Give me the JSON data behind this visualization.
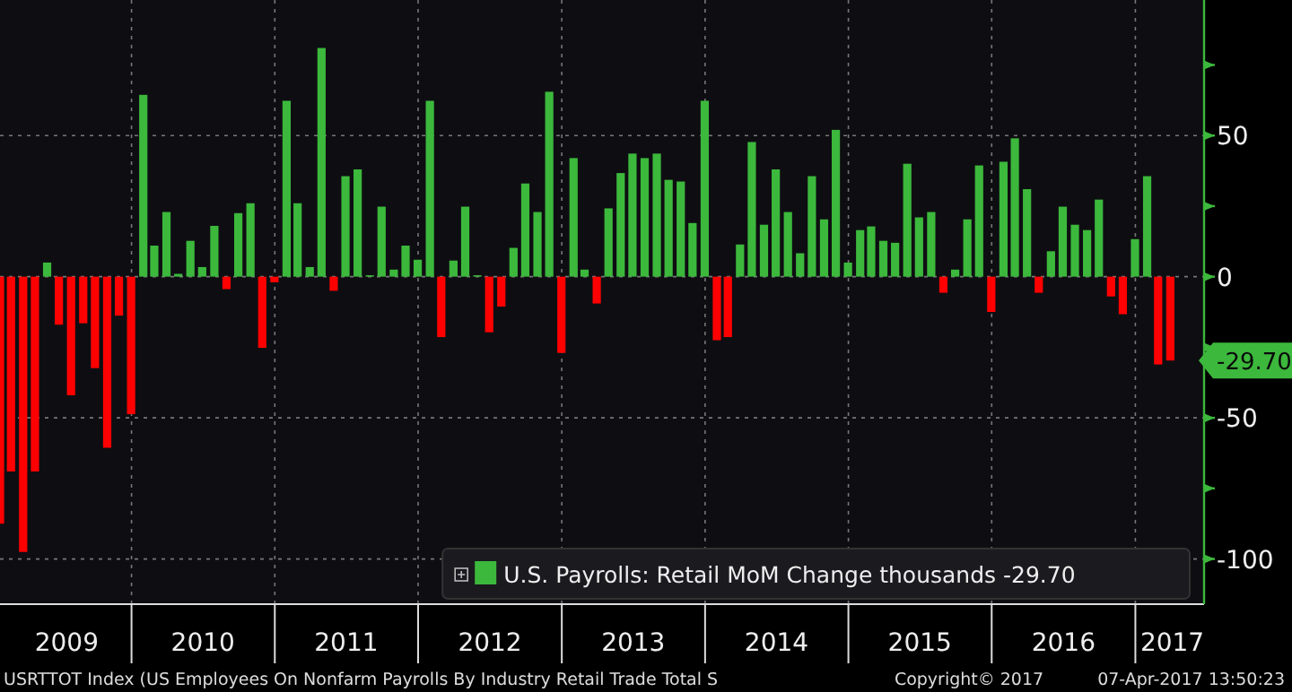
{
  "chart_data": {
    "type": "bar",
    "legend": "bottom right",
    "grid": true,
    "series": [
      {
        "name": "U.S. Payrolls: Retail MoM Change thousands -29.70",
        "color": "#3cb83c",
        "x": [
          "2009-01-31",
          "2009-02-28",
          "2009-03-31",
          "2009-04-30",
          "2009-05-31",
          "2009-06-30",
          "2009-07-31",
          "2009-08-31",
          "2009-09-30",
          "2009-10-31",
          "2009-11-30",
          "2009-12-31",
          "2010-01-31",
          "2010-02-28",
          "2010-03-31",
          "2010-04-30",
          "2010-05-31",
          "2010-06-30",
          "2010-07-31",
          "2010-08-31",
          "2010-09-30",
          "2010-10-31",
          "2010-11-30",
          "2010-12-31",
          "2011-01-31",
          "2011-02-28",
          "2011-03-31",
          "2011-04-30",
          "2011-05-31",
          "2011-06-30",
          "2011-07-31",
          "2011-08-31",
          "2011-09-30",
          "2011-10-31",
          "2011-11-30",
          "2011-12-31",
          "2012-01-31",
          "2012-02-29",
          "2012-03-31",
          "2012-04-30",
          "2012-05-31",
          "2012-06-30",
          "2012-07-31",
          "2012-08-31",
          "2012-09-30",
          "2012-10-31",
          "2012-11-30",
          "2012-12-31",
          "2013-01-31",
          "2013-02-28",
          "2013-03-31",
          "2013-04-30",
          "2013-05-31",
          "2013-06-30",
          "2013-07-31",
          "2013-08-31",
          "2013-09-30",
          "2013-10-31",
          "2013-11-30",
          "2013-12-31",
          "2014-01-31",
          "2014-02-28",
          "2014-03-31",
          "2014-04-30",
          "2014-05-31",
          "2014-06-30",
          "2014-07-31",
          "2014-08-31",
          "2014-09-30",
          "2014-10-31",
          "2014-11-30",
          "2014-12-31",
          "2015-01-31",
          "2015-02-28",
          "2015-03-31",
          "2015-04-30",
          "2015-05-31",
          "2015-06-30",
          "2015-07-31",
          "2015-08-31",
          "2015-09-30",
          "2015-10-31",
          "2015-11-30",
          "2015-12-31",
          "2016-01-31",
          "2016-02-29",
          "2016-03-31",
          "2016-04-30",
          "2016-05-31",
          "2016-06-30",
          "2016-07-31",
          "2016-08-31",
          "2016-09-30",
          "2016-10-31",
          "2016-11-30",
          "2016-12-31",
          "2017-01-31",
          "2017-02-28",
          "2017-03-31"
        ],
        "values": [
          -87.5,
          -69,
          -97.5,
          -69,
          5,
          -17,
          -42,
          -16.5,
          -32.4,
          -60.6,
          -13.8,
          -48.7,
          64.4,
          11,
          22.9,
          1,
          12.7,
          3.4,
          18,
          -4.4,
          22.5,
          26,
          -25.2,
          -2,
          62.3,
          26,
          3.4,
          81,
          -5,
          35.6,
          38,
          0.5,
          24.8,
          2.5,
          11,
          6,
          62.3,
          -21.4,
          5.7,
          24.8,
          0.5,
          -19.7,
          -10.6,
          10.2,
          33,
          22.9,
          65.5,
          -27,
          42,
          2.5,
          -9.5,
          24.2,
          36.7,
          43.6,
          42,
          43.6,
          34.3,
          33.7,
          19,
          62.3,
          -22.5,
          -21.4,
          11.4,
          47.7,
          18.4,
          38,
          22.9,
          8.3,
          35.6,
          20.3,
          52,
          5,
          16.5,
          17.8,
          12.7,
          12,
          40,
          21,
          22.9,
          -5.7,
          2.5,
          20.3,
          39.4,
          -12.5,
          40.7,
          49,
          31,
          -5.7,
          9,
          24.8,
          18.4,
          16.5,
          27.3,
          -7,
          -13.3,
          13.3,
          35.6,
          -31.1,
          -29.7
        ],
        "colors": [
          "#ff0000",
          "#ff0000",
          "#ff0000",
          "#ff0000",
          "#3cb83c",
          "#ff0000",
          "#ff0000",
          "#ff0000",
          "#ff0000",
          "#ff0000",
          "#ff0000",
          "#ff0000",
          "#3cb83c",
          "#3cb83c",
          "#3cb83c",
          "#3cb83c",
          "#3cb83c",
          "#3cb83c",
          "#3cb83c",
          "#ff0000",
          "#3cb83c",
          "#3cb83c",
          "#ff0000",
          "#ff0000",
          "#3cb83c",
          "#3cb83c",
          "#3cb83c",
          "#3cb83c",
          "#ff0000",
          "#3cb83c",
          "#3cb83c",
          "#3cb83c",
          "#3cb83c",
          "#3cb83c",
          "#3cb83c",
          "#3cb83c",
          "#3cb83c",
          "#ff0000",
          "#3cb83c",
          "#3cb83c",
          "#3cb83c",
          "#ff0000",
          "#ff0000",
          "#3cb83c",
          "#3cb83c",
          "#3cb83c",
          "#3cb83c",
          "#ff0000",
          "#3cb83c",
          "#3cb83c",
          "#ff0000",
          "#3cb83c",
          "#3cb83c",
          "#3cb83c",
          "#3cb83c",
          "#3cb83c",
          "#3cb83c",
          "#3cb83c",
          "#3cb83c",
          "#3cb83c",
          "#ff0000",
          "#ff0000",
          "#3cb83c",
          "#3cb83c",
          "#3cb83c",
          "#3cb83c",
          "#3cb83c",
          "#3cb83c",
          "#3cb83c",
          "#3cb83c",
          "#3cb83c",
          "#3cb83c",
          "#3cb83c",
          "#3cb83c",
          "#3cb83c",
          "#3cb83c",
          "#3cb83c",
          "#3cb83c",
          "#3cb83c",
          "#ff0000",
          "#3cb83c",
          "#3cb83c",
          "#3cb83c",
          "#ff0000",
          "#3cb83c",
          "#3cb83c",
          "#3cb83c",
          "#ff0000",
          "#3cb83c",
          "#3cb83c",
          "#3cb83c",
          "#3cb83c",
          "#3cb83c",
          "#ff0000",
          "#ff0000",
          "#3cb83c",
          "#3cb83c",
          "#ff0000",
          "#ff0000"
        ]
      }
    ],
    "xlim": [
      "2009-01-31",
      "2017-06-25"
    ],
    "xticks": [
      {
        "value": "2010-01-01",
        "label": null
      },
      {
        "value": "2011-01-01",
        "label": null
      },
      {
        "value": "2012-01-01",
        "label": null
      },
      {
        "value": "2013-01-01",
        "label": null
      },
      {
        "value": "2014-01-01",
        "label": null
      },
      {
        "value": "2015-01-01",
        "label": null
      },
      {
        "value": "2016-01-01",
        "label": null
      },
      {
        "value": "2017-01-01",
        "label": null
      },
      {
        "value": "2009-07-20",
        "label": "2009"
      },
      {
        "value": "2010-07-02",
        "label": "2010"
      },
      {
        "value": "2011-07-02",
        "label": "2011"
      },
      {
        "value": "2012-07-02",
        "label": "2012"
      },
      {
        "value": "2013-07-02",
        "label": "2013"
      },
      {
        "value": "2014-07-02",
        "label": "2014"
      },
      {
        "value": "2015-07-02",
        "label": "2015"
      },
      {
        "value": "2016-07-02",
        "label": "2016"
      },
      {
        "value": "2017-04-05",
        "label": "2017"
      }
    ],
    "ylim": [
      -116,
      98
    ],
    "yticks": [
      {
        "value": 75,
        "label": null
      },
      50,
      {
        "value": 25,
        "label": null
      },
      0,
      {
        "value": -25,
        "label": null
      },
      -50,
      {
        "value": -75,
        "label": null
      },
      -100
    ],
    "annotations": [
      "-29.70",
      "USRTTOT Index (US Employees On Nonfarm Payrolls By Industry Retail Trade Total S",
      "Copyright© 2017",
      "07-Apr-2017 13:50:23"
    ]
  }
}
